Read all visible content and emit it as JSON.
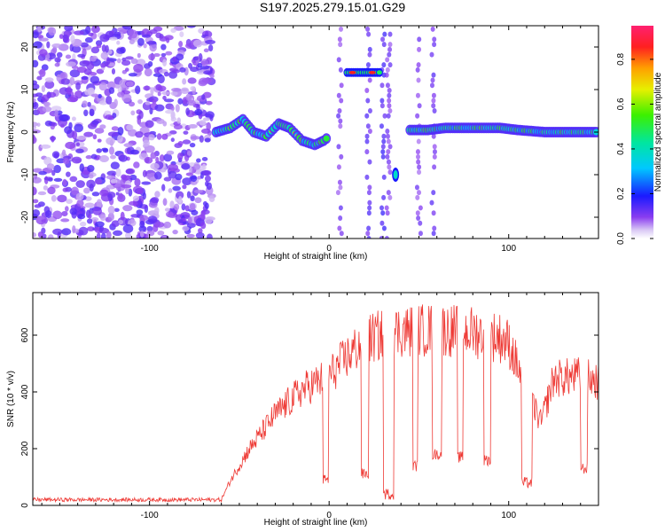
{
  "title": "S197.2025.279.15.01.G29",
  "chart_data": [
    {
      "type": "heatmap",
      "xlabel": "Height of straight line (km)",
      "ylabel": "Frequency (Hz)",
      "xlim": [
        -165,
        150
      ],
      "ylim": [
        -25,
        25
      ],
      "xticks": [
        -100,
        0,
        100
      ],
      "yticks": [
        -20,
        -10,
        0,
        10,
        20
      ],
      "colorbar": {
        "label": "Normalized spectral amplitude",
        "ticks": [
          0.0,
          0.2,
          0.4,
          0.6,
          0.8
        ],
        "range": [
          0.0,
          0.95
        ]
      },
      "noise_region_km": [
        -165,
        -65
      ],
      "ridge": [
        {
          "x": -63,
          "y": 0
        },
        {
          "x": -55,
          "y": 1
        },
        {
          "x": -48,
          "y": 3
        },
        {
          "x": -42,
          "y": 0
        },
        {
          "x": -35,
          "y": -1
        },
        {
          "x": -28,
          "y": 2
        },
        {
          "x": -22,
          "y": 1
        },
        {
          "x": -15,
          "y": -2
        },
        {
          "x": -8,
          "y": -3
        },
        {
          "x": -3,
          "y": -2
        },
        {
          "x": 0,
          "y": -1
        },
        {
          "x": 45,
          "y": 0.5
        },
        {
          "x": 55,
          "y": 0.5
        },
        {
          "x": 65,
          "y": 1
        },
        {
          "x": 80,
          "y": 1
        },
        {
          "x": 95,
          "y": 1
        },
        {
          "x": 105,
          "y": 0.5
        },
        {
          "x": 120,
          "y": 0
        },
        {
          "x": 135,
          "y": 0
        },
        {
          "x": 150,
          "y": 0
        }
      ],
      "high_band": {
        "x_start": 10,
        "x_end": 28,
        "y": 14
      },
      "low_blob": {
        "x": 37,
        "y": -10
      }
    },
    {
      "type": "line",
      "xlabel": "Height of straight line (km)",
      "ylabel": "SNR (10 * v/v)",
      "xlim": [
        -165,
        150
      ],
      "ylim": [
        0,
        750
      ],
      "xticks": [
        -100,
        0,
        100
      ],
      "yticks": [
        0,
        200,
        400,
        600
      ],
      "color": "#ee3a35",
      "envelope": [
        {
          "x": -165,
          "y": 20
        },
        {
          "x": -60,
          "y": 20
        },
        {
          "x": -55,
          "y": 90
        },
        {
          "x": -45,
          "y": 200
        },
        {
          "x": -30,
          "y": 330
        },
        {
          "x": -15,
          "y": 420
        },
        {
          "x": 0,
          "y": 470
        },
        {
          "x": 10,
          "y": 540
        },
        {
          "x": 20,
          "y": 600
        },
        {
          "x": 35,
          "y": 630
        },
        {
          "x": 60,
          "y": 640
        },
        {
          "x": 80,
          "y": 630
        },
        {
          "x": 95,
          "y": 610
        },
        {
          "x": 100,
          "y": 590
        },
        {
          "x": 110,
          "y": 420
        },
        {
          "x": 118,
          "y": 300
        },
        {
          "x": 125,
          "y": 460
        },
        {
          "x": 140,
          "y": 470
        },
        {
          "x": 150,
          "y": 450
        }
      ],
      "dropouts": [
        {
          "x": -2,
          "w": 3,
          "y": 90
        },
        {
          "x": 20,
          "w": 4,
          "y": 110
        },
        {
          "x": 33,
          "w": 6,
          "y": 40
        },
        {
          "x": 48,
          "w": 3,
          "y": 140
        },
        {
          "x": 60,
          "w": 5,
          "y": 180
        },
        {
          "x": 73,
          "w": 3,
          "y": 170
        },
        {
          "x": 88,
          "w": 4,
          "y": 160
        },
        {
          "x": 110,
          "w": 6,
          "y": 80
        },
        {
          "x": 142,
          "w": 4,
          "y": 130
        }
      ]
    }
  ]
}
